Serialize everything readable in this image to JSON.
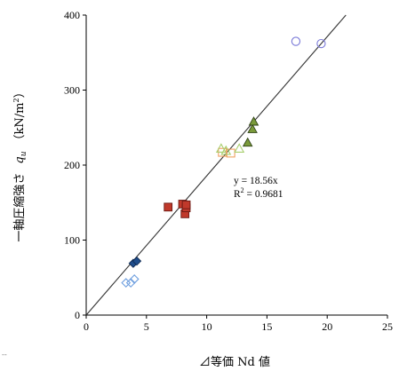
{
  "chart_data": {
    "type": "scatter",
    "xlabel": "⊿等価 Nd 値",
    "ylabel_main": "一軸圧縮強さ",
    "ylabel_symbol": "q",
    "ylabel_sub": "u",
    "ylabel_unit_pre": "（kN/m",
    "ylabel_unit_sup": "2",
    "ylabel_unit_post": "）",
    "xlim": [
      0,
      25
    ],
    "ylim": [
      0,
      400
    ],
    "xticks": [
      0,
      5,
      10,
      15,
      20,
      25
    ],
    "yticks": [
      0,
      100,
      200,
      300,
      400
    ],
    "grid": false,
    "legend": "none",
    "corner_mark": "--",
    "trendline": {
      "slope": 18.56,
      "equation_label": "y = 18.56x",
      "r2_pre": "R",
      "r2_sup": "2",
      "r2_post": " = 0.9681",
      "color": "#333333"
    },
    "series": [
      {
        "marker": "diamond-open",
        "color": "#6f9fdf",
        "points": [
          [
            3.3,
            43
          ],
          [
            3.7,
            43
          ],
          [
            4.0,
            48
          ]
        ]
      },
      {
        "marker": "diamond-filled",
        "color": "#1f4e8c",
        "stroke": "#0f2a52",
        "points": [
          [
            3.9,
            69
          ],
          [
            4.2,
            72
          ]
        ]
      },
      {
        "marker": "square-filled",
        "color": "#c0392b",
        "stroke": "#6b1a14",
        "points": [
          [
            6.8,
            144
          ],
          [
            8.0,
            148
          ],
          [
            8.2,
            135
          ],
          [
            8.3,
            143
          ],
          [
            8.3,
            147
          ]
        ]
      },
      {
        "marker": "square-open",
        "color": "#f0a060",
        "points": [
          [
            11.3,
            217
          ],
          [
            12.0,
            216
          ]
        ]
      },
      {
        "marker": "triangle-open",
        "color": "#a8cf6e",
        "points": [
          [
            11.2,
            222
          ],
          [
            11.6,
            219
          ],
          [
            12.7,
            222
          ]
        ]
      },
      {
        "marker": "triangle-filled",
        "color": "#7a9a3a",
        "stroke": "#2f4216",
        "points": [
          [
            13.4,
            230
          ],
          [
            13.8,
            248
          ],
          [
            13.9,
            258
          ]
        ]
      },
      {
        "marker": "circle-open",
        "color": "#7a7ad8",
        "points": [
          [
            17.4,
            365
          ],
          [
            19.5,
            362
          ]
        ]
      }
    ]
  }
}
